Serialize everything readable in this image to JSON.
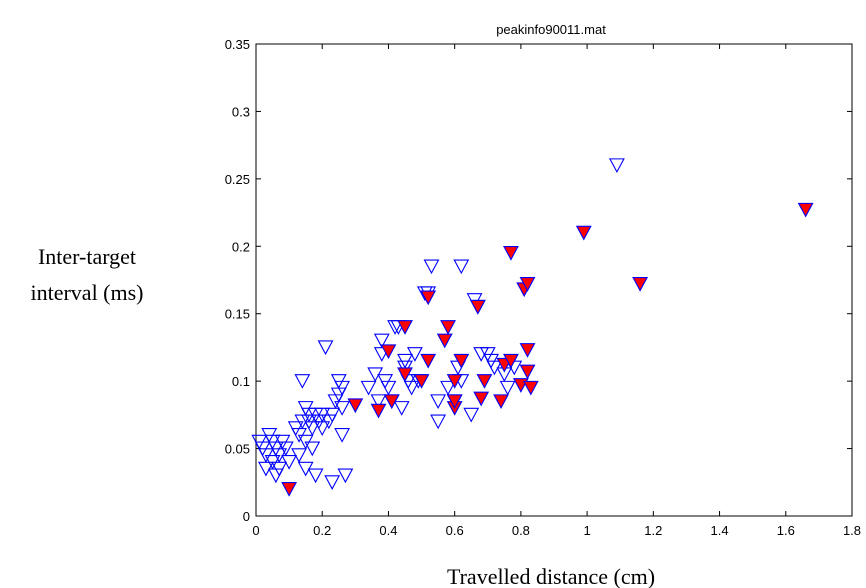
{
  "chart_data": {
    "type": "scatter",
    "title": "peakinfo90011.mat",
    "xlabel": "Travelled distance (cm)",
    "ylabel_lines": [
      "Inter-target",
      "interval (ms)"
    ],
    "xlim": [
      0,
      1.8
    ],
    "ylim": [
      0,
      0.35
    ],
    "xticks": [
      0,
      0.2,
      0.4,
      0.6,
      0.8,
      1,
      1.2,
      1.4,
      1.6,
      1.8
    ],
    "xtick_labels": [
      "0",
      "0.2",
      "0.4",
      "0.6",
      "0.8",
      "1",
      "1.2",
      "1.4",
      "1.6",
      "1.8"
    ],
    "yticks": [
      0,
      0.05,
      0.1,
      0.15,
      0.2,
      0.25,
      0.3,
      0.35
    ],
    "ytick_labels": [
      "0",
      "0.05",
      "0.1",
      "0.15",
      "0.2",
      "0.25",
      "0.3",
      "0.35"
    ],
    "grid": false,
    "colors": {
      "open_edge": "#0000ff",
      "filled_face": "#ff0000",
      "filled_edge": "#0000ff"
    },
    "series": [
      {
        "marker": "open-triangle-down",
        "points": [
          [
            0.01,
            0.055
          ],
          [
            0.02,
            0.05
          ],
          [
            0.03,
            0.045
          ],
          [
            0.03,
            0.035
          ],
          [
            0.04,
            0.06
          ],
          [
            0.05,
            0.055
          ],
          [
            0.05,
            0.04
          ],
          [
            0.06,
            0.05
          ],
          [
            0.06,
            0.03
          ],
          [
            0.07,
            0.045
          ],
          [
            0.07,
            0.035
          ],
          [
            0.08,
            0.055
          ],
          [
            0.09,
            0.05
          ],
          [
            0.1,
            0.04
          ],
          [
            0.12,
            0.065
          ],
          [
            0.13,
            0.06
          ],
          [
            0.13,
            0.045
          ],
          [
            0.14,
            0.07
          ],
          [
            0.15,
            0.055
          ],
          [
            0.15,
            0.035
          ],
          [
            0.16,
            0.07
          ],
          [
            0.16,
            0.075
          ],
          [
            0.17,
            0.065
          ],
          [
            0.17,
            0.05
          ],
          [
            0.18,
            0.075
          ],
          [
            0.18,
            0.03
          ],
          [
            0.19,
            0.07
          ],
          [
            0.2,
            0.075
          ],
          [
            0.2,
            0.065
          ],
          [
            0.21,
            0.125
          ],
          [
            0.22,
            0.07
          ],
          [
            0.23,
            0.075
          ],
          [
            0.14,
            0.1
          ],
          [
            0.15,
            0.08
          ],
          [
            0.24,
            0.085
          ],
          [
            0.25,
            0.1
          ],
          [
            0.25,
            0.09
          ],
          [
            0.26,
            0.095
          ],
          [
            0.26,
            0.08
          ],
          [
            0.26,
            0.06
          ],
          [
            0.27,
            0.03
          ],
          [
            0.23,
            0.025
          ],
          [
            0.34,
            0.095
          ],
          [
            0.36,
            0.105
          ],
          [
            0.37,
            0.085
          ],
          [
            0.38,
            0.13
          ],
          [
            0.38,
            0.12
          ],
          [
            0.39,
            0.1
          ],
          [
            0.4,
            0.095
          ],
          [
            0.41,
            0.085
          ],
          [
            0.42,
            0.14
          ],
          [
            0.43,
            0.14
          ],
          [
            0.44,
            0.08
          ],
          [
            0.45,
            0.115
          ],
          [
            0.45,
            0.11
          ],
          [
            0.46,
            0.1
          ],
          [
            0.47,
            0.095
          ],
          [
            0.48,
            0.12
          ],
          [
            0.49,
            0.1
          ],
          [
            0.51,
            0.165
          ],
          [
            0.52,
            0.165
          ],
          [
            0.53,
            0.185
          ],
          [
            0.55,
            0.085
          ],
          [
            0.55,
            0.07
          ],
          [
            0.58,
            0.095
          ],
          [
            0.6,
            0.085
          ],
          [
            0.61,
            0.11
          ],
          [
            0.62,
            0.1
          ],
          [
            0.62,
            0.185
          ],
          [
            0.65,
            0.075
          ],
          [
            0.66,
            0.16
          ],
          [
            0.67,
            0.155
          ],
          [
            0.68,
            0.12
          ],
          [
            0.7,
            0.12
          ],
          [
            0.71,
            0.115
          ],
          [
            0.72,
            0.11
          ],
          [
            0.75,
            0.105
          ],
          [
            0.76,
            0.095
          ],
          [
            0.78,
            0.11
          ],
          [
            1.09,
            0.26
          ]
        ]
      },
      {
        "marker": "filled-triangle-down",
        "points": [
          [
            0.1,
            0.02
          ],
          [
            0.3,
            0.082
          ],
          [
            0.37,
            0.078
          ],
          [
            0.4,
            0.122
          ],
          [
            0.41,
            0.085
          ],
          [
            0.45,
            0.14
          ],
          [
            0.45,
            0.105
          ],
          [
            0.5,
            0.1
          ],
          [
            0.52,
            0.162
          ],
          [
            0.52,
            0.115
          ],
          [
            0.57,
            0.13
          ],
          [
            0.58,
            0.14
          ],
          [
            0.6,
            0.1
          ],
          [
            0.6,
            0.08
          ],
          [
            0.6,
            0.085
          ],
          [
            0.62,
            0.115
          ],
          [
            0.67,
            0.155
          ],
          [
            0.68,
            0.087
          ],
          [
            0.69,
            0.1
          ],
          [
            0.74,
            0.085
          ],
          [
            0.75,
            0.112
          ],
          [
            0.77,
            0.115
          ],
          [
            0.77,
            0.195
          ],
          [
            0.8,
            0.097
          ],
          [
            0.81,
            0.168
          ],
          [
            0.82,
            0.172
          ],
          [
            0.82,
            0.107
          ],
          [
            0.82,
            0.123
          ],
          [
            0.83,
            0.095
          ],
          [
            0.99,
            0.21
          ],
          [
            1.16,
            0.172
          ],
          [
            1.66,
            0.227
          ]
        ]
      }
    ]
  }
}
